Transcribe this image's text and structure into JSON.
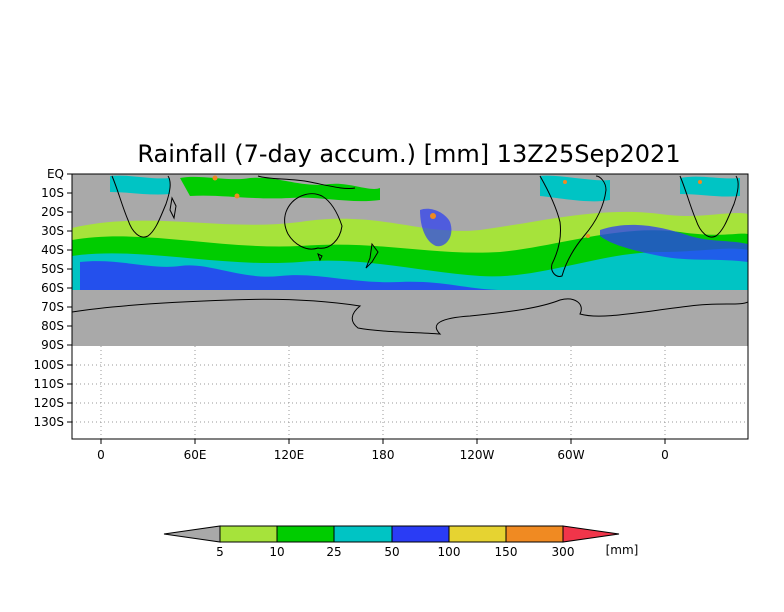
{
  "title": "Rainfall (7-day accum.) [mm] 13Z25Sep2021",
  "lat_labels": [
    "EQ",
    "10S",
    "20S",
    "30S",
    "40S",
    "50S",
    "60S",
    "70S",
    "80S",
    "90S",
    "100S",
    "110S",
    "120S",
    "130S"
  ],
  "lon_labels": [
    "0",
    "60E",
    "120E",
    "180",
    "120W",
    "60W",
    "0"
  ],
  "colorbar": {
    "breaks": [
      "5",
      "10",
      "25",
      "50",
      "100",
      "150",
      "300"
    ],
    "unit": "[mm]",
    "colors": [
      "#a9a9a9",
      "#a6e33b",
      "#00cc00",
      "#00c4c4",
      "#2a3cf5",
      "#e6d331",
      "#f08a22",
      "#f0354a"
    ]
  },
  "colors": {
    "no_data_gray": "#a9a9a9",
    "coastline": "#000000",
    "frame": "#000000"
  }
}
